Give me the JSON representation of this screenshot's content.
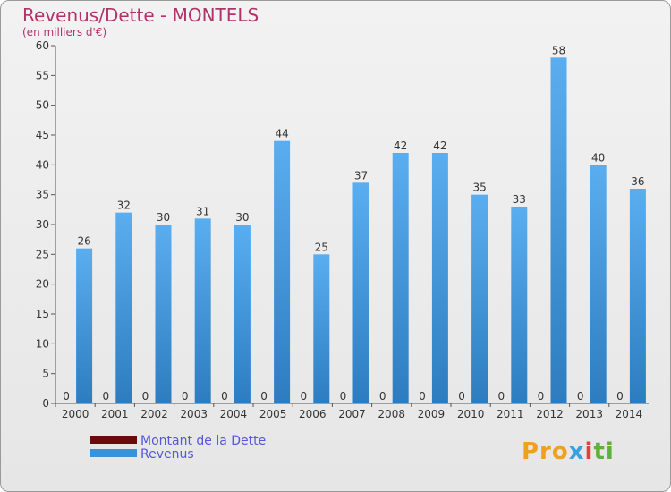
{
  "chart_data": {
    "type": "bar",
    "title": "Revenus/Dette - MONTELS",
    "subtitle": "(en milliers d'€)",
    "categories": [
      "2000",
      "2001",
      "2002",
      "2003",
      "2004",
      "2005",
      "2006",
      "2007",
      "2008",
      "2009",
      "2010",
      "2011",
      "2012",
      "2013",
      "2014"
    ],
    "series": [
      {
        "name": "Montant de la Dette",
        "color": "#6b0a0a",
        "values": [
          0,
          0,
          0,
          0,
          0,
          0,
          0,
          0,
          0,
          0,
          0,
          0,
          0,
          0,
          0
        ]
      },
      {
        "name": "Revenus",
        "color": "#3a93d8",
        "values": [
          26,
          32,
          30,
          31,
          30,
          44,
          25,
          37,
          42,
          42,
          35,
          33,
          58,
          40,
          36
        ]
      }
    ],
    "ylim": [
      0,
      60
    ],
    "yticks": [
      0,
      5,
      10,
      15,
      20,
      25,
      30,
      35,
      40,
      45,
      50,
      55,
      60
    ],
    "grid": false,
    "legend_position": "bottom-left"
  },
  "logo": {
    "parts": [
      "Pro",
      "x",
      "i",
      "ti"
    ]
  }
}
